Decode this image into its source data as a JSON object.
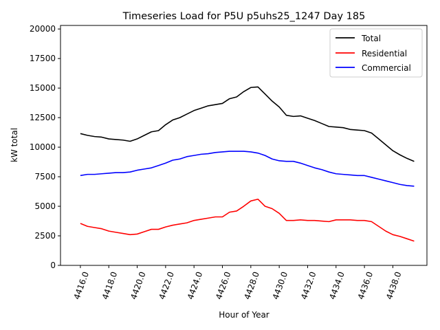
{
  "chart_data": {
    "type": "line",
    "title": "Timeseries Load for P5U p5uhs25_1247  Day 185",
    "xlabel": "Hour of Year",
    "ylabel": "kW total",
    "xlim": [
      4414.6,
      4440.4
    ],
    "ylim": [
      0,
      20300
    ],
    "x_ticks": [
      4416,
      4418,
      4420,
      4422,
      4424,
      4426,
      4428,
      4430,
      4432,
      4434,
      4436,
      4438
    ],
    "x_tick_labels": [
      "4416.0",
      "4418.0",
      "4420.0",
      "4422.0",
      "4424.0",
      "4426.0",
      "4428.0",
      "4430.0",
      "4432.0",
      "4434.0",
      "4436.0",
      "4438.0"
    ],
    "y_ticks": [
      0,
      2500,
      5000,
      7500,
      10000,
      12500,
      15000,
      17500,
      20000
    ],
    "y_tick_labels": [
      "0",
      "2500",
      "5000",
      "7500",
      "10000",
      "12500",
      "15000",
      "17500",
      "20000"
    ],
    "legend_position": "top-right",
    "x": [
      4416.0,
      4416.5,
      4417.0,
      4417.5,
      4418.0,
      4418.5,
      4419.0,
      4419.5,
      4420.0,
      4420.5,
      4421.0,
      4421.5,
      4422.0,
      4422.5,
      4423.0,
      4423.5,
      4424.0,
      4424.5,
      4425.0,
      4425.5,
      4426.0,
      4426.5,
      4427.0,
      4427.5,
      4428.0,
      4428.5,
      4429.0,
      4429.5,
      4430.0,
      4430.5,
      4431.0,
      4431.5,
      4432.0,
      4432.5,
      4433.0,
      4433.5,
      4434.0,
      4434.5,
      4435.0,
      4435.5,
      4436.0,
      4436.5,
      4437.0,
      4437.5,
      4438.0,
      4438.5,
      4439.0,
      4439.5
    ],
    "series": [
      {
        "name": "Total",
        "color": "#000000",
        "values": [
          11150,
          11000,
          10900,
          10850,
          10700,
          10650,
          10600,
          10500,
          10700,
          11000,
          11300,
          11400,
          11900,
          12300,
          12500,
          12800,
          13100,
          13300,
          13500,
          13600,
          13700,
          14100,
          14250,
          14700,
          15050,
          15100,
          14500,
          13900,
          13400,
          12700,
          12600,
          12650,
          12450,
          12250,
          12000,
          11750,
          11700,
          11650,
          11500,
          11450,
          11400,
          11200,
          10700,
          10200,
          9700,
          9350,
          9050,
          8800
        ]
      },
      {
        "name": "Residential",
        "color": "#ff0000",
        "values": [
          3550,
          3300,
          3200,
          3100,
          2900,
          2800,
          2700,
          2600,
          2650,
          2850,
          3050,
          3050,
          3250,
          3400,
          3500,
          3600,
          3800,
          3900,
          4000,
          4100,
          4100,
          4500,
          4600,
          5000,
          5450,
          5600,
          5000,
          4800,
          4400,
          3800,
          3800,
          3850,
          3800,
          3800,
          3750,
          3700,
          3850,
          3850,
          3850,
          3800,
          3800,
          3700,
          3300,
          2900,
          2600,
          2450,
          2250,
          2050
        ]
      },
      {
        "name": "Commercial",
        "color": "#0000ff",
        "values": [
          7600,
          7700,
          7700,
          7750,
          7800,
          7850,
          7850,
          7900,
          8050,
          8150,
          8250,
          8450,
          8650,
          8900,
          9000,
          9200,
          9300,
          9400,
          9450,
          9550,
          9600,
          9650,
          9650,
          9650,
          9600,
          9500,
          9300,
          9000,
          8850,
          8800,
          8800,
          8650,
          8450,
          8250,
          8100,
          7900,
          7750,
          7700,
          7650,
          7600,
          7600,
          7450,
          7300,
          7150,
          7000,
          6850,
          6750,
          6700
        ]
      }
    ]
  }
}
